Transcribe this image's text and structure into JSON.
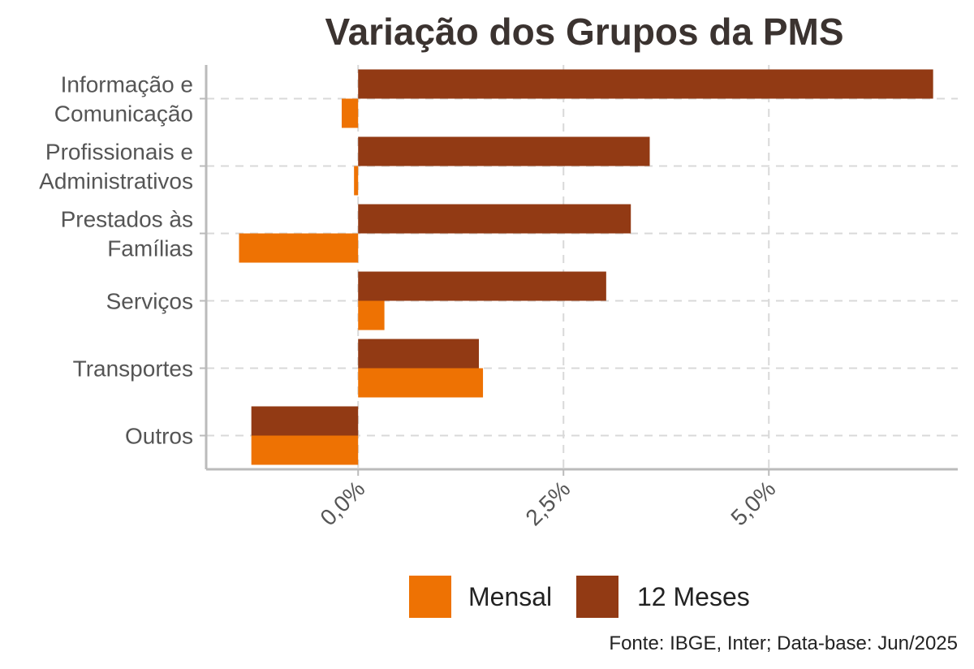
{
  "chart_data": {
    "type": "bar",
    "orientation": "horizontal",
    "title": "Variação dos Grupos da PMS",
    "categories": [
      "Informação e\nComunicação",
      "Profissionais e\nAdministrativos",
      "Prestados às\nFamílias",
      "Serviços",
      "Transportes",
      "Outros"
    ],
    "series": [
      {
        "name": "Mensal",
        "color": "#EE7203",
        "values": [
          -0.2,
          -0.05,
          -1.45,
          0.32,
          1.52,
          -1.3
        ]
      },
      {
        "name": "12 Meses",
        "color": "#923A14",
        "values": [
          7.0,
          3.55,
          3.32,
          3.02,
          1.47,
          -1.3
        ]
      }
    ],
    "xlim": [
      -1.85,
      7.3
    ],
    "x_ticks": [
      0,
      2.5,
      5
    ],
    "x_tick_labels": [
      "0,0%",
      "2,5%",
      "5,0%"
    ],
    "grid": true,
    "legend_position": "bottom",
    "caption": "Fonte: IBGE, Inter; Data-base: Jun/2025"
  }
}
